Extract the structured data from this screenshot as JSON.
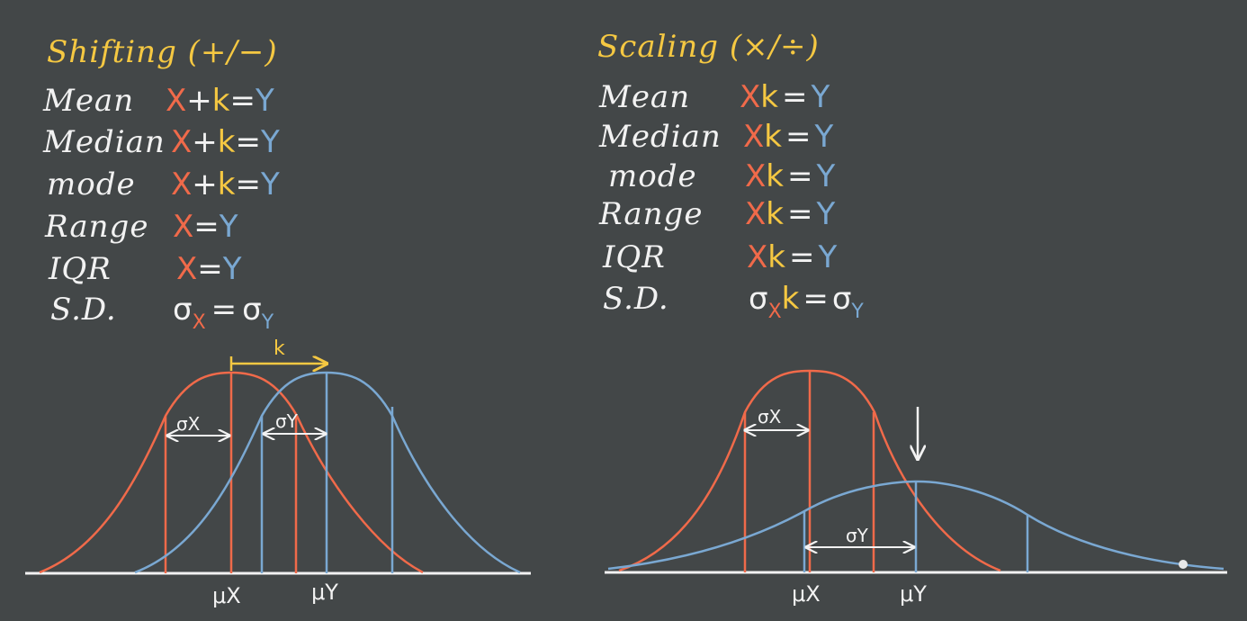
{
  "left": {
    "title": "Shifting (+/−)",
    "rows": [
      {
        "label": "Mean",
        "x": "X",
        "op": "+",
        "k": "k",
        "eq": "=",
        "y": "Y"
      },
      {
        "label": "Median",
        "x": "X",
        "op": "+",
        "k": "k",
        "eq": "=",
        "y": "Y"
      },
      {
        "label": "mode",
        "x": "X",
        "op": "+",
        "k": "k",
        "eq": "=",
        "y": "Y"
      },
      {
        "label": "Range",
        "x": "X",
        "op": "",
        "k": "",
        "eq": "=",
        "y": "Y"
      },
      {
        "label": "IQR",
        "x": "X",
        "op": "",
        "k": "",
        "eq": "=",
        "y": "Y"
      }
    ],
    "sd": {
      "label": "S.D.",
      "sigma": "σ",
      "x": "X",
      "eq": "=",
      "sigma2": "σ",
      "y": "Y"
    },
    "graph": {
      "k_label": "k",
      "sx_label": "σX",
      "sy_label": "σY",
      "mux": "μX",
      "muy": "μY"
    }
  },
  "right": {
    "title": "Scaling (×/÷)",
    "rows": [
      {
        "label": "Mean",
        "x": "X",
        "k": "k",
        "eq": "=",
        "y": "Y"
      },
      {
        "label": "Median",
        "x": "X",
        "k": "k",
        "eq": "=",
        "y": "Y"
      },
      {
        "label": "mode",
        "x": "X",
        "k": "k",
        "eq": "=",
        "y": "Y"
      },
      {
        "label": "Range",
        "x": "X",
        "k": "k",
        "eq": "=",
        "y": "Y"
      },
      {
        "label": "IQR",
        "x": "X",
        "k": "k",
        "eq": "=",
        "y": "Y"
      }
    ],
    "sd": {
      "label": "S.D.",
      "sigma": "σ",
      "x": "X",
      "k": "k",
      "eq": "=",
      "sigma2": "σ",
      "y": "Y"
    },
    "graph": {
      "sx_label": "σX",
      "sy_label": "σY",
      "mux": "μX",
      "muy": "μY"
    }
  },
  "colors": {
    "background": "#434748",
    "x": "#f06a4a",
    "k": "#f5c842",
    "y": "#7aa8d2",
    "chalk": "#f2f2f2"
  }
}
